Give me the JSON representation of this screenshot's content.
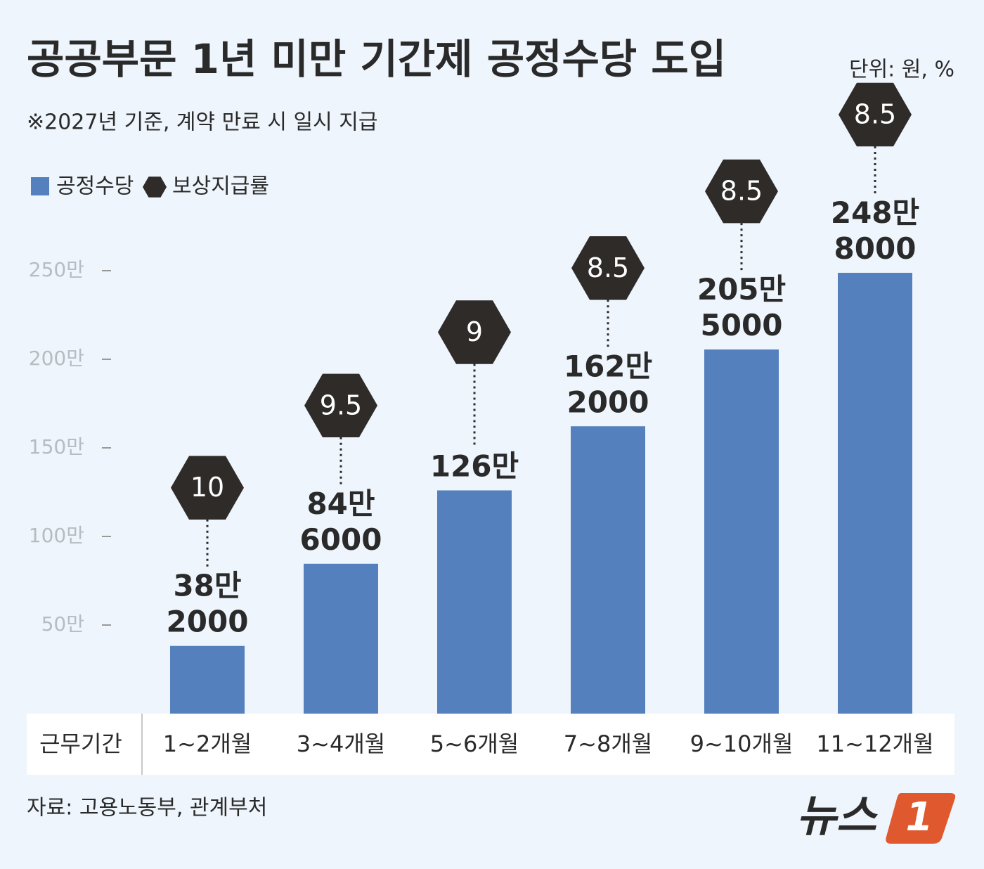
{
  "chart_data": {
    "type": "bar",
    "title": "공공부문 1년 미만 기간제 공정수당 도입",
    "unit_note": "단위: 원, %",
    "subtitle": "※2027년 기준, 계약 만료 시 일시 지급",
    "x_header": "근무기간",
    "categories": [
      "1~2개월",
      "3~4개월",
      "5~6개월",
      "7~8개월",
      "9~10개월",
      "11~12개월"
    ],
    "series": [
      {
        "name": "공정수당",
        "color": "#5580be",
        "values": [
          382000,
          846000,
          1260000,
          1622000,
          2055000,
          2488000
        ],
        "value_labels": [
          "38만 2000",
          "84만 6000",
          "126만",
          "162만 2000",
          "205만 5000",
          "248만 8000"
        ]
      },
      {
        "name": "보상지급률",
        "color": "#2e2b29",
        "marker": "hexagon",
        "values": [
          10,
          9.5,
          9,
          8.5,
          8.5,
          8.5
        ]
      }
    ],
    "ylim": [
      0,
      2500000
    ],
    "yticks": [
      {
        "value": 500000,
        "label": "50만"
      },
      {
        "value": 1000000,
        "label": "100만"
      },
      {
        "value": 1500000,
        "label": "150만"
      },
      {
        "value": 2000000,
        "label": "200만"
      },
      {
        "value": 2500000,
        "label": "250만"
      }
    ],
    "source": "자료: 고용노동부, 관계부처",
    "logo": {
      "text": "뉴스",
      "mark": "1"
    }
  }
}
